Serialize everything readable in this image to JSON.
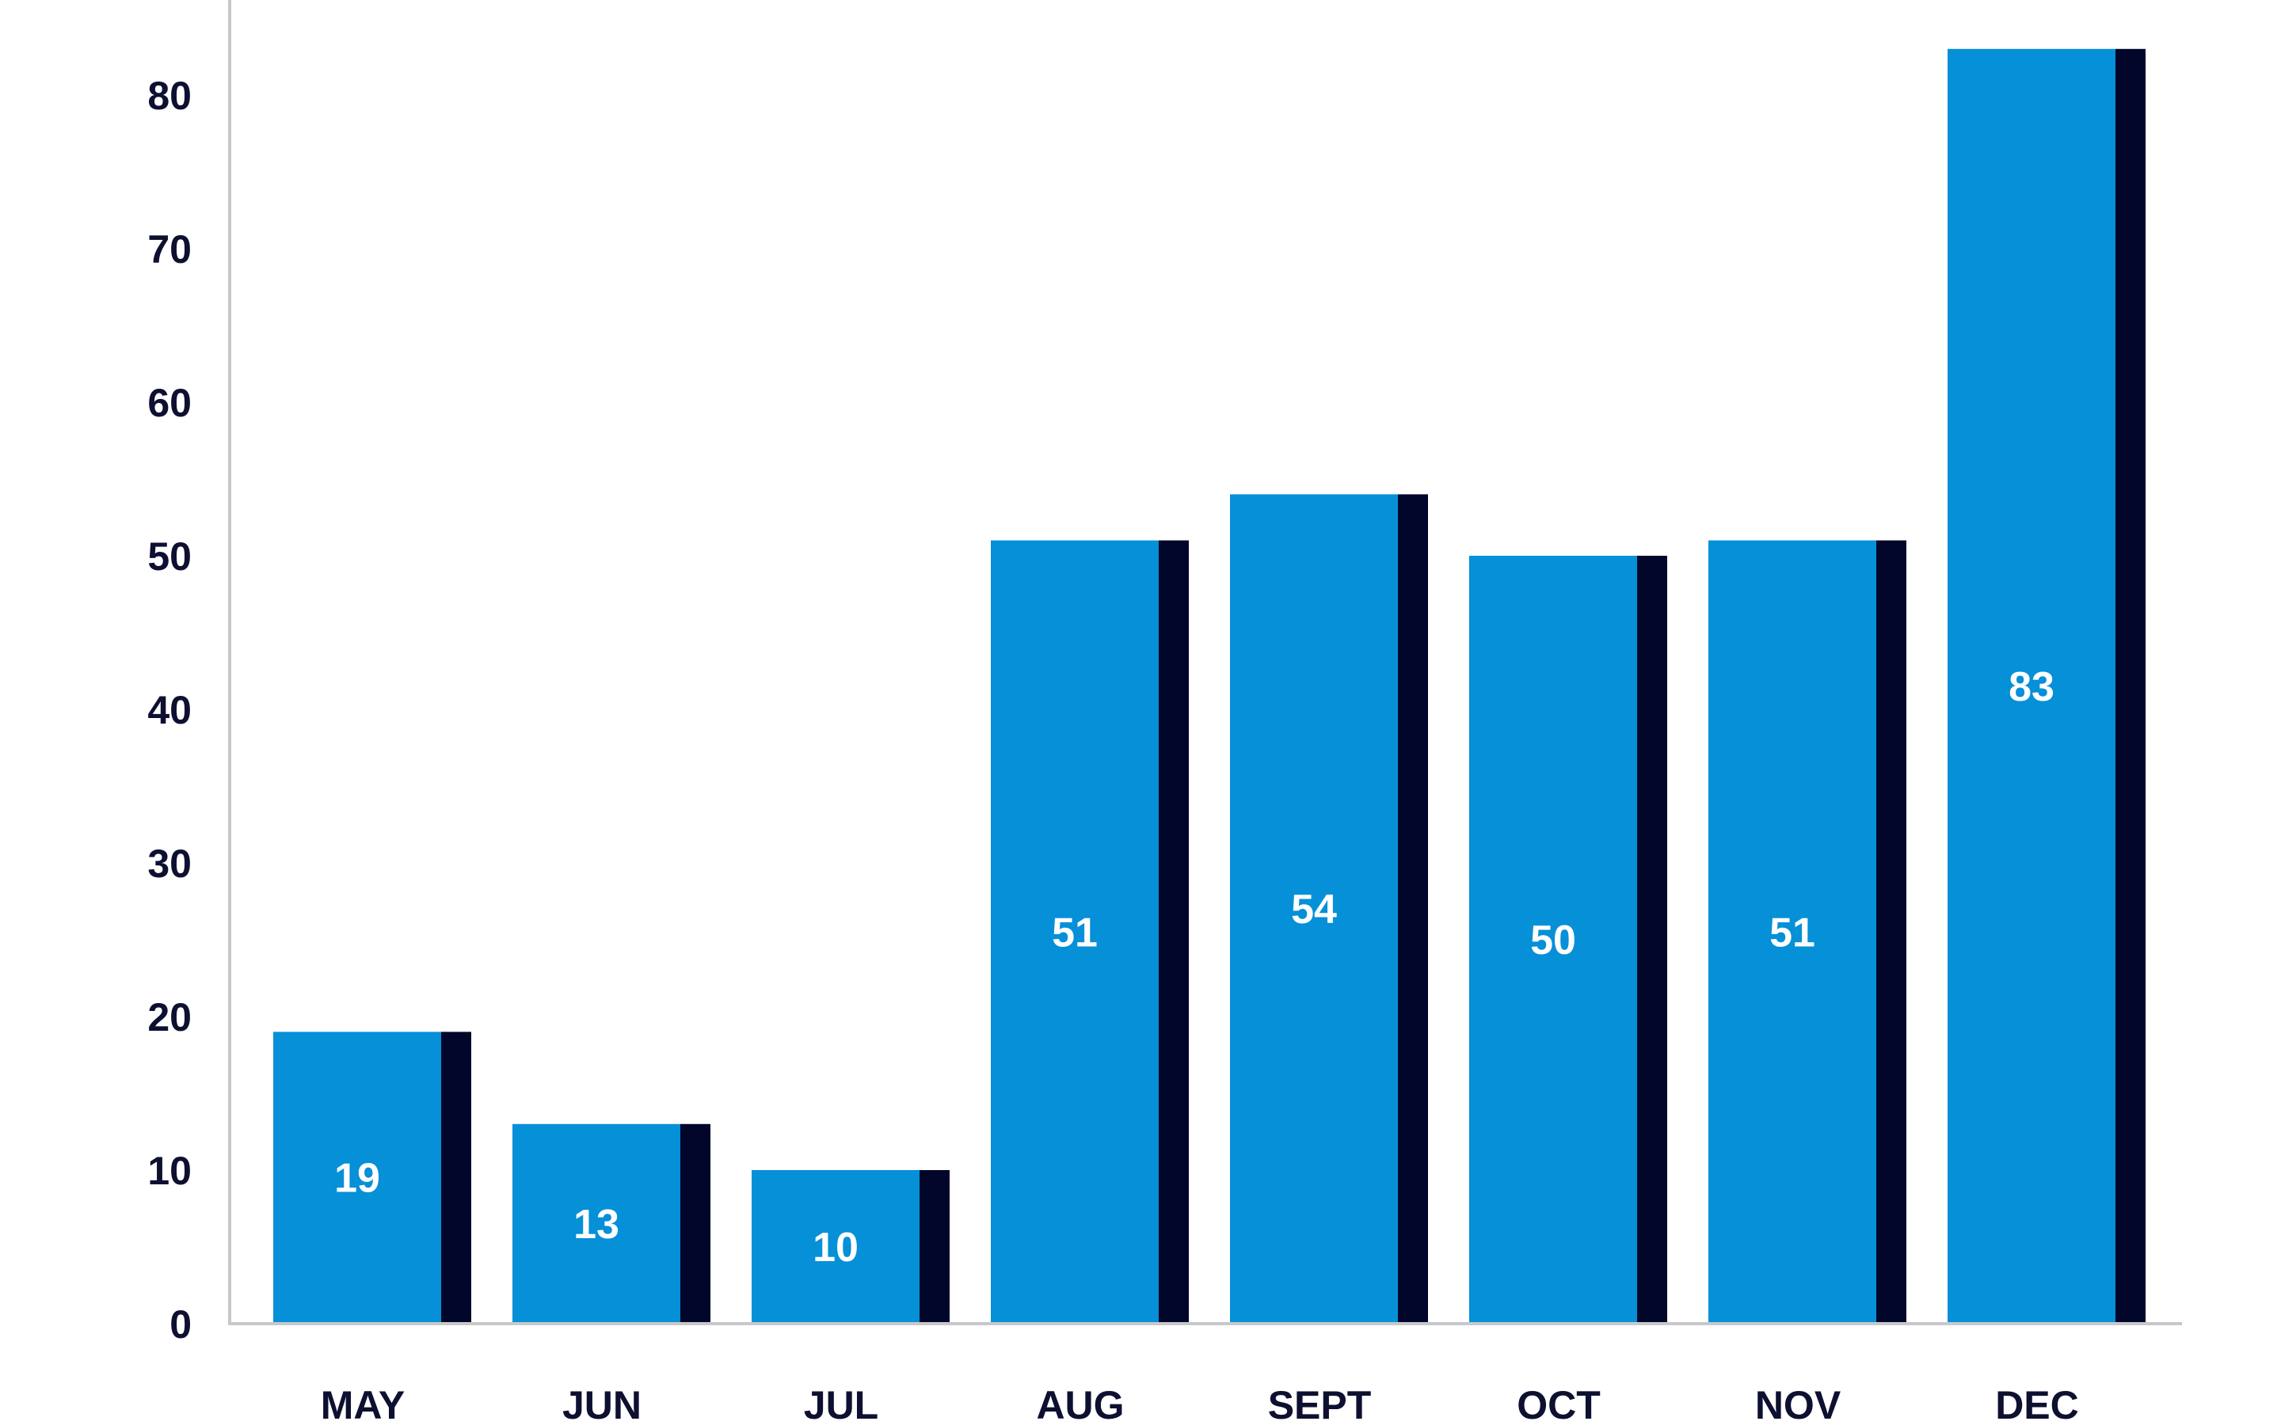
{
  "chart_data": {
    "type": "bar",
    "title": "",
    "xlabel": "",
    "ylabel": "",
    "categories": [
      "MAY",
      "JUN",
      "JUL",
      "AUG",
      "SEPT",
      "OCT",
      "NOV",
      "DEC"
    ],
    "values": [
      19,
      13,
      10,
      51,
      54,
      50,
      51,
      83
    ],
    "data_labels": [
      "19",
      "13",
      "10",
      "51",
      "54",
      "50",
      "51",
      "83"
    ],
    "ylim": [
      0,
      85
    ],
    "yticks": [
      0,
      10,
      20,
      30,
      40,
      50,
      60,
      70,
      80
    ],
    "ytick_labels": [
      "0",
      "10",
      "20",
      "30",
      "40",
      "50",
      "60",
      "70",
      "80"
    ],
    "grid": false,
    "legend": "none",
    "colors": {
      "bar": "#0590d8",
      "bar_shadow": "#02062a",
      "axis": "#c8c8cc",
      "tick_text": "#0d1030",
      "data_label_text": "#ffffff"
    }
  }
}
